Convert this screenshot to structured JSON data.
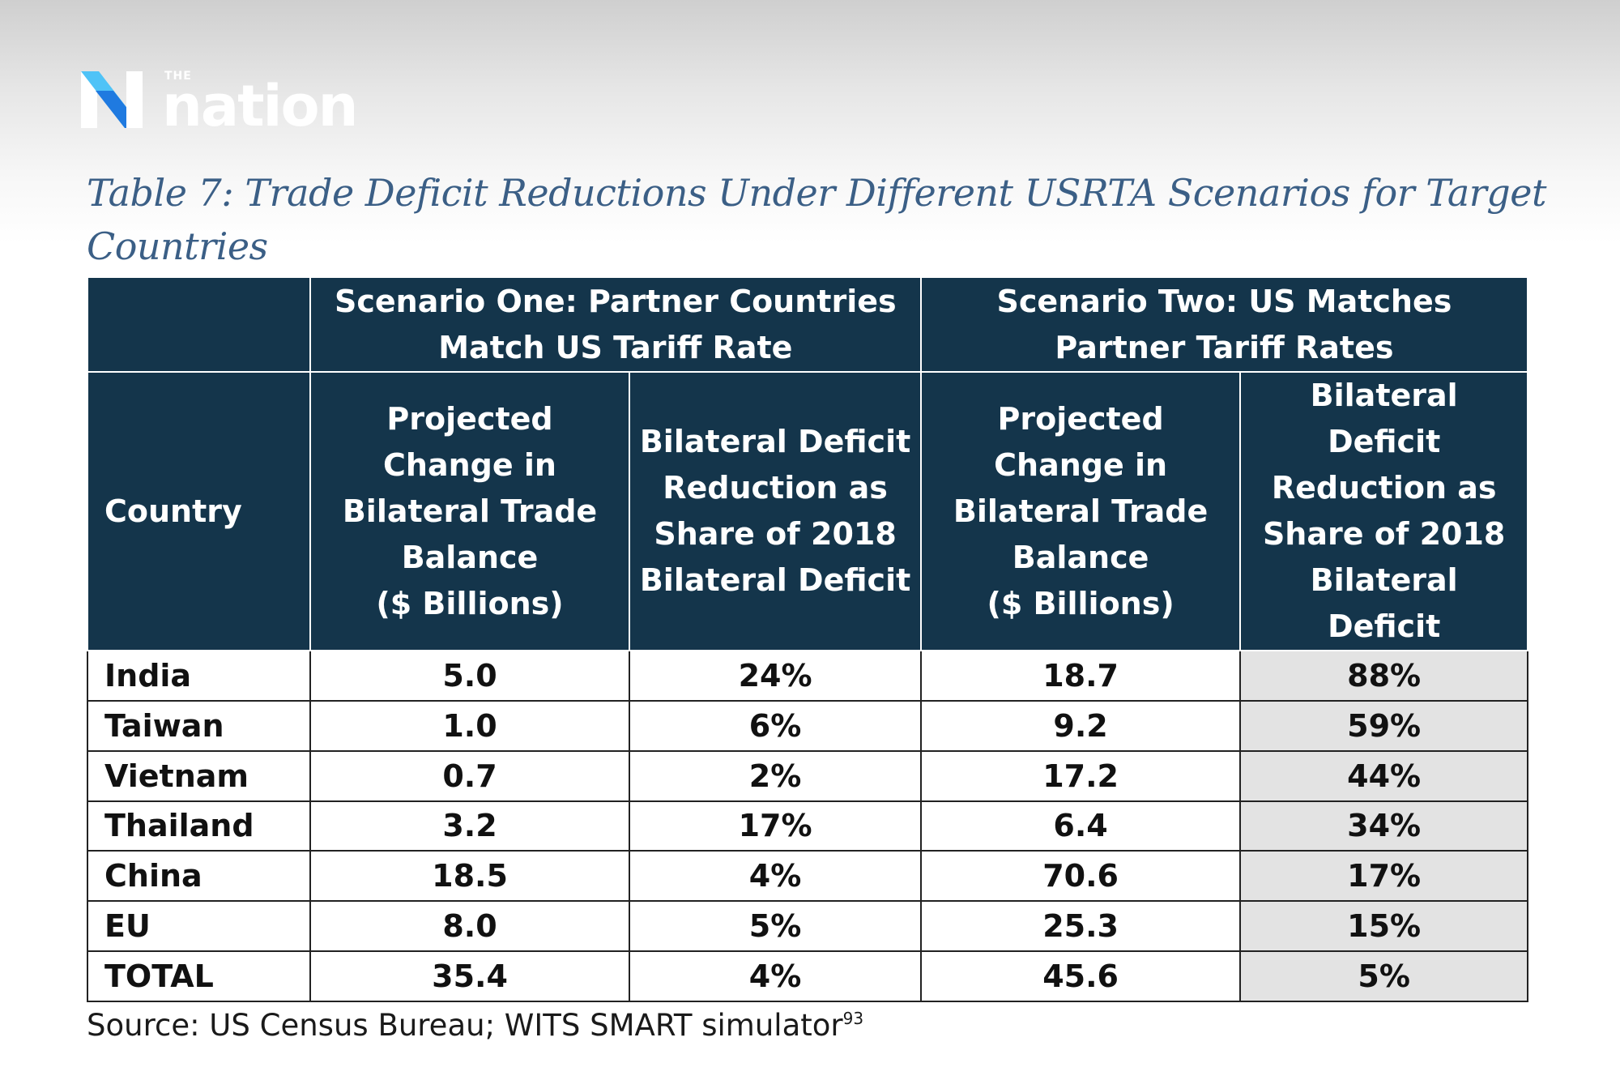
{
  "brand": {
    "the": "THE",
    "name": "nation"
  },
  "title": "Table 7: Trade Deficit Reductions Under Different USRTA Scenarios for Target Countries",
  "table": {
    "scenario_one": "Scenario One: Partner Countries Match US Tariff Rate",
    "scenario_two": "Scenario Two: US Matches Partner Tariff Rates",
    "columns": {
      "country": "Country",
      "s1_change": [
        "Projected",
        "Change in",
        "Bilateral Trade",
        "Balance",
        "($ Billions)"
      ],
      "s1_share": [
        "Bilateral Deficit",
        "Reduction as",
        "Share of 2018",
        "Bilateral Deficit"
      ],
      "s2_change": [
        "Projected",
        "Change in",
        "Bilateral Trade",
        "Balance",
        "($ Billions)"
      ],
      "s2_share": [
        "Bilateral",
        "Deficit",
        "Reduction as",
        "Share of 2018",
        "Bilateral",
        "Deficit"
      ]
    },
    "rows": [
      [
        "India",
        "5.0",
        "24%",
        "18.7",
        "88%"
      ],
      [
        "Taiwan",
        "1.0",
        "6%",
        "9.2",
        "59%"
      ],
      [
        "Vietnam",
        "0.7",
        "2%",
        "17.2",
        "44%"
      ],
      [
        "Thailand",
        "3.2",
        "17%",
        "6.4",
        "34%"
      ],
      [
        "China",
        "18.5",
        "4%",
        "70.6",
        "17%"
      ],
      [
        "EU",
        "8.0",
        "5%",
        "25.3",
        "15%"
      ],
      [
        "TOTAL",
        "35.4",
        "4%",
        "45.6",
        "5%"
      ]
    ]
  },
  "source": {
    "text": "Source: US Census Bureau; WITS SMART simulator",
    "footnote": "93"
  },
  "colors": {
    "header_bg": "#14354b",
    "title": "#3b5f86",
    "shaded_cell": "#e3e3e3",
    "logo_blue": "#1f7ae0",
    "logo_cyan": "#4fc3f7"
  }
}
